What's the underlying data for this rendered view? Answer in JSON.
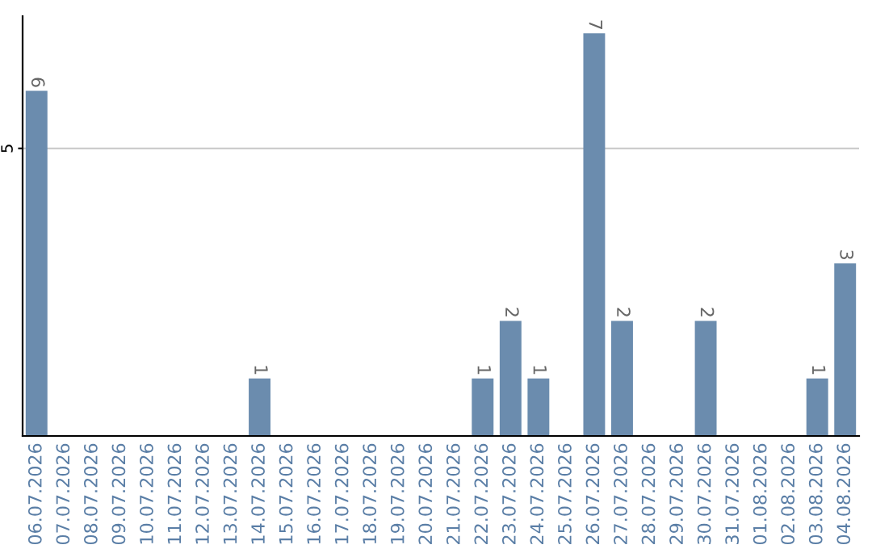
{
  "chart_data": {
    "type": "bar",
    "categories": [
      "06.07.2026",
      "07.07.2026",
      "08.07.2026",
      "09.07.2026",
      "10.07.2026",
      "11.07.2026",
      "12.07.2026",
      "13.07.2026",
      "14.07.2026",
      "15.07.2026",
      "16.07.2026",
      "17.07.2026",
      "18.07.2026",
      "19.07.2026",
      "20.07.2026",
      "21.07.2026",
      "22.07.2026",
      "23.07.2026",
      "24.07.2026",
      "25.07.2026",
      "26.07.2026",
      "27.07.2026",
      "28.07.2026",
      "29.07.2026",
      "30.07.2026",
      "31.07.2026",
      "01.08.2026",
      "02.08.2026",
      "03.08.2026",
      "04.08.2026"
    ],
    "values": [
      6,
      0,
      0,
      0,
      0,
      0,
      0,
      0,
      1,
      0,
      0,
      0,
      0,
      0,
      0,
      0,
      1,
      2,
      1,
      0,
      7,
      2,
      0,
      0,
      2,
      0,
      0,
      0,
      1,
      3
    ],
    "value_labels": [
      "6",
      null,
      null,
      null,
      null,
      null,
      null,
      null,
      "1",
      null,
      null,
      null,
      null,
      null,
      null,
      null,
      "1",
      "2",
      "1",
      null,
      "7",
      "2",
      null,
      null,
      "2",
      null,
      null,
      null,
      "1",
      "3"
    ],
    "color": "#6b8cae",
    "ylim": [
      0,
      7.3
    ],
    "yticks": [
      5
    ],
    "grid": "y"
  }
}
